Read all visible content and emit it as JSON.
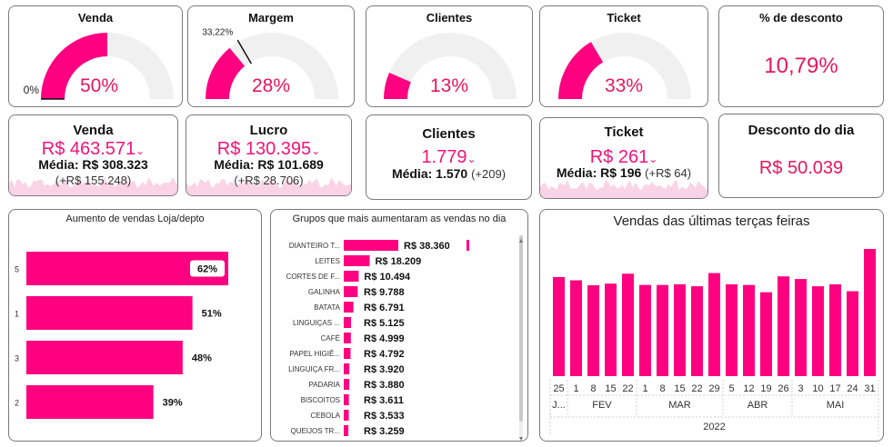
{
  "colors": {
    "accent": "#ff0080",
    "track": "#f0f0f0",
    "value_text": "#e6175c",
    "spark": "#fbd3e6"
  },
  "gauges": [
    {
      "title": "Venda",
      "value": "50%",
      "fraction": 0.5,
      "min_label": "0%",
      "target_label": "",
      "target_fraction": 0.0
    },
    {
      "title": "Margem",
      "value": "28%",
      "fraction": 0.28,
      "min_label": "",
      "target_label": "33,22%",
      "target_fraction": 0.3322
    },
    {
      "title": "Clientes",
      "value": "13%",
      "fraction": 0.13,
      "min_label": "",
      "target_label": "",
      "target_fraction": null
    },
    {
      "title": "Ticket",
      "value": "33%",
      "fraction": 0.33,
      "min_label": "",
      "target_label": "",
      "target_fraction": null
    }
  ],
  "discount_card": {
    "title": "% de desconto",
    "value": "10,79%"
  },
  "kpis": [
    {
      "title": "Venda",
      "value": "R$ 463.571",
      "avg_label": "Média: R$ 308.323",
      "avg_extra": "",
      "diff": "(+R$ 155.248)"
    },
    {
      "title": "Lucro",
      "value": "R$ 130.395",
      "avg_label": "Média: R$ 101.689",
      "avg_extra": "",
      "diff": "(+R$ 28.706)"
    },
    {
      "title": "Clientes",
      "value": "1.779",
      "avg_label": "Média: 1.570",
      "avg_extra": "(+209)",
      "diff": ""
    },
    {
      "title": "Ticket",
      "value": "R$ 261",
      "avg_label": "Média: R$ 196",
      "avg_extra": "(+R$ 64)",
      "diff": ""
    }
  ],
  "day_discount": {
    "title": "Desconto do dia",
    "value": "R$ 50.039"
  },
  "chart_data": [
    {
      "type": "bar",
      "orientation": "horizontal",
      "title": "Aumento de vendas Loja/depto",
      "categories": [
        "5",
        "1",
        "3",
        "2"
      ],
      "values": [
        62,
        51,
        48,
        39
      ],
      "labels": [
        "62%",
        "51%",
        "48%",
        "39%"
      ]
    },
    {
      "type": "bar",
      "orientation": "horizontal",
      "title": "Grupos que mais aumentaram as vendas no dia",
      "categories": [
        "DIANTEIRO T...",
        "LEITES",
        "CORTES DE F...",
        "GALINHA",
        "BATATA",
        "LINGUIÇAS ...",
        "CAFÉ",
        "PAPEL HIGIÊ...",
        "LINGUIÇA FR...",
        "PADARIA",
        "BISCOITOS",
        "CEBOLA",
        "QUEIJOS TR..."
      ],
      "values": [
        38360,
        18209,
        10494,
        9788,
        6791,
        5125,
        4999,
        4792,
        3920,
        3880,
        3611,
        3533,
        3259
      ],
      "labels": [
        "R$ 38.360",
        "R$ 18.209",
        "R$ 10.494",
        "R$ 9.788",
        "R$ 6.791",
        "R$ 5.125",
        "R$ 4.999",
        "R$ 4.792",
        "R$ 3.920",
        "R$ 3.880",
        "R$ 3.611",
        "R$ 3.533",
        "R$ 3.259"
      ]
    },
    {
      "type": "bar",
      "title": "Vendas das últimas terças feiras",
      "days": [
        "25",
        "1",
        "8",
        "15",
        "22",
        "1",
        "8",
        "15",
        "22",
        "29",
        "5",
        "12",
        "19",
        "26",
        "3",
        "10",
        "17",
        "24",
        "31"
      ],
      "month_groups": [
        {
          "label": "J...",
          "count": 1
        },
        {
          "label": "FEV",
          "count": 4
        },
        {
          "label": "MAR",
          "count": 5
        },
        {
          "label": "ABR",
          "count": 4
        },
        {
          "label": "MAI",
          "count": 5
        }
      ],
      "year": "2022",
      "values": [
        300,
        290,
        275,
        280,
        310,
        276,
        276,
        278,
        272,
        312,
        278,
        276,
        254,
        302,
        294,
        272,
        278,
        257,
        385
      ]
    }
  ]
}
